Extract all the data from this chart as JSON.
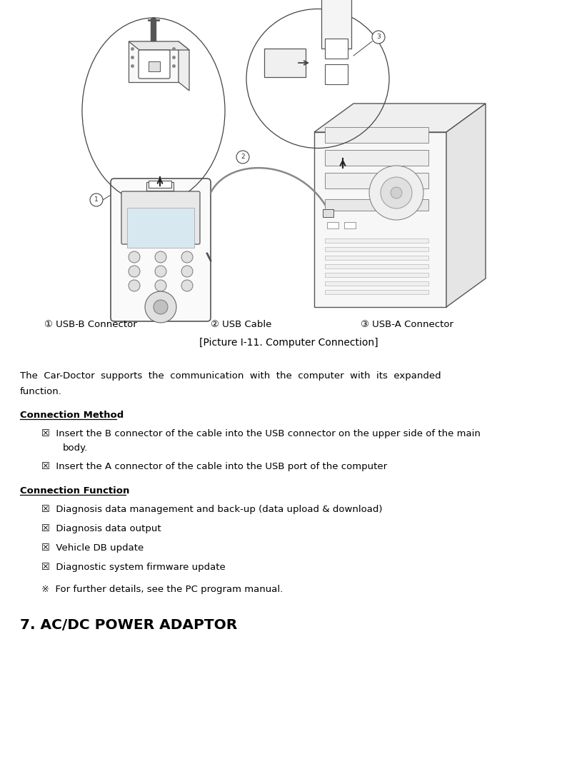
{
  "background_color": "#ffffff",
  "label1": "① USB-B Connector",
  "label2": "② USB Cable",
  "label3": "③ USB-A Connector",
  "picture_caption": "[Picture I-11. Computer Connection]",
  "line1": "The  Car-Doctor  supports  the  communication  with  the  computer  with  its  expanded",
  "line2": "function.",
  "heading1": "Connection Method",
  "b1a_line1": "☒  Insert the B connector of the cable into the USB connector on the upper side of the main",
  "b1a_line2": "body.",
  "b1b": "☒  Insert the A connector of the cable into the USB port of the computer",
  "heading2": "Connection Function",
  "bullet2a": "☒  Diagnosis data management and back-up (data upload & download)",
  "bullet2b": "☒  Diagnosis data output",
  "bullet2c": "☒  Vehicle DB update",
  "bullet2d": "☒  Diagnostic system firmware update",
  "note": "※  For further details, see the PC program manual.",
  "heading3": "7. AC/DC POWER ADAPTOR",
  "fig_width": 8.08,
  "fig_height": 10.84,
  "dpi": 100,
  "text_color": "#000000"
}
